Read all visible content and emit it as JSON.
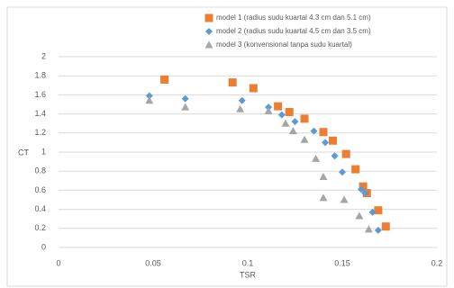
{
  "chart_data": {
    "type": "scatter",
    "x_label": "TSR",
    "y_label": "CT",
    "xlim": [
      0,
      0.2
    ],
    "xticks": [
      0,
      0.05,
      0.1,
      0.15,
      0.2
    ],
    "ylim": [
      0,
      2
    ],
    "yticks": [
      0,
      0.2,
      0.4,
      0.6,
      0.8,
      1,
      1.2,
      1.4,
      1.6,
      1.8,
      2
    ],
    "grid": true,
    "legend": "top",
    "series": [
      {
        "name": "model 1 (radius sudu kuartal 4.3 cm dan 5.1 cm)",
        "color": "#ed7d31",
        "marker": "square",
        "x": [
          0.056,
          0.092,
          0.103,
          0.116,
          0.122,
          0.13,
          0.14,
          0.145,
          0.152,
          0.157,
          0.161,
          0.163,
          0.169,
          0.173
        ],
        "values": [
          1.76,
          1.73,
          1.67,
          1.48,
          1.42,
          1.35,
          1.21,
          1.12,
          0.98,
          0.82,
          0.64,
          0.57,
          0.39,
          0.22
        ]
      },
      {
        "name": "model 2 (radius sudu kuartal 4.5 cm dan 3.5 cm)",
        "color": "#5b9bd5",
        "marker": "diamond",
        "x": [
          0.048,
          0.067,
          0.097,
          0.111,
          0.118,
          0.125,
          0.135,
          0.141,
          0.146,
          0.15,
          0.16,
          0.162,
          0.166,
          0.169
        ],
        "values": [
          1.59,
          1.56,
          1.54,
          1.47,
          1.39,
          1.32,
          1.22,
          1.1,
          0.96,
          0.79,
          0.61,
          0.57,
          0.37,
          0.18
        ]
      },
      {
        "name": "model 3 (konvensional tanpa sudu kuartal)",
        "color": "#a5a5a5",
        "marker": "triangle",
        "x": [
          0.048,
          0.067,
          0.096,
          0.111,
          0.12,
          0.124,
          0.13,
          0.136,
          0.14,
          0.14,
          0.151,
          0.159,
          0.164
        ],
        "values": [
          1.54,
          1.47,
          1.45,
          1.43,
          1.3,
          1.22,
          1.13,
          0.93,
          0.74,
          0.52,
          0.5,
          0.33,
          0.19
        ]
      }
    ]
  }
}
